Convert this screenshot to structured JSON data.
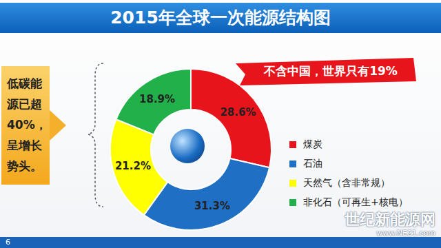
{
  "chart_data": {
    "type": "pie",
    "title": "2015年全球一次能源结构图",
    "categories": [
      "煤炭",
      "石油",
      "天然气（含非常规）",
      "非化石（可再生+核电）"
    ],
    "values": [
      28.6,
      31.3,
      21.2,
      18.9
    ],
    "value_labels": [
      "28.6%",
      "31.3%",
      "21.2%",
      "18.9%"
    ],
    "colors": [
      "#e8141b",
      "#1f6fc5",
      "#ffff00",
      "#22b04b"
    ],
    "data_labels": true,
    "legend": "right",
    "annotations": {
      "banner": "不含中国，世界只有19%",
      "side_note": [
        "低碳能",
        "源已超",
        "40%，",
        "呈增长",
        "势头。"
      ],
      "page_number": "6",
      "watermark": [
        "世纪新能源网",
        "www.NE21.com"
      ]
    }
  }
}
